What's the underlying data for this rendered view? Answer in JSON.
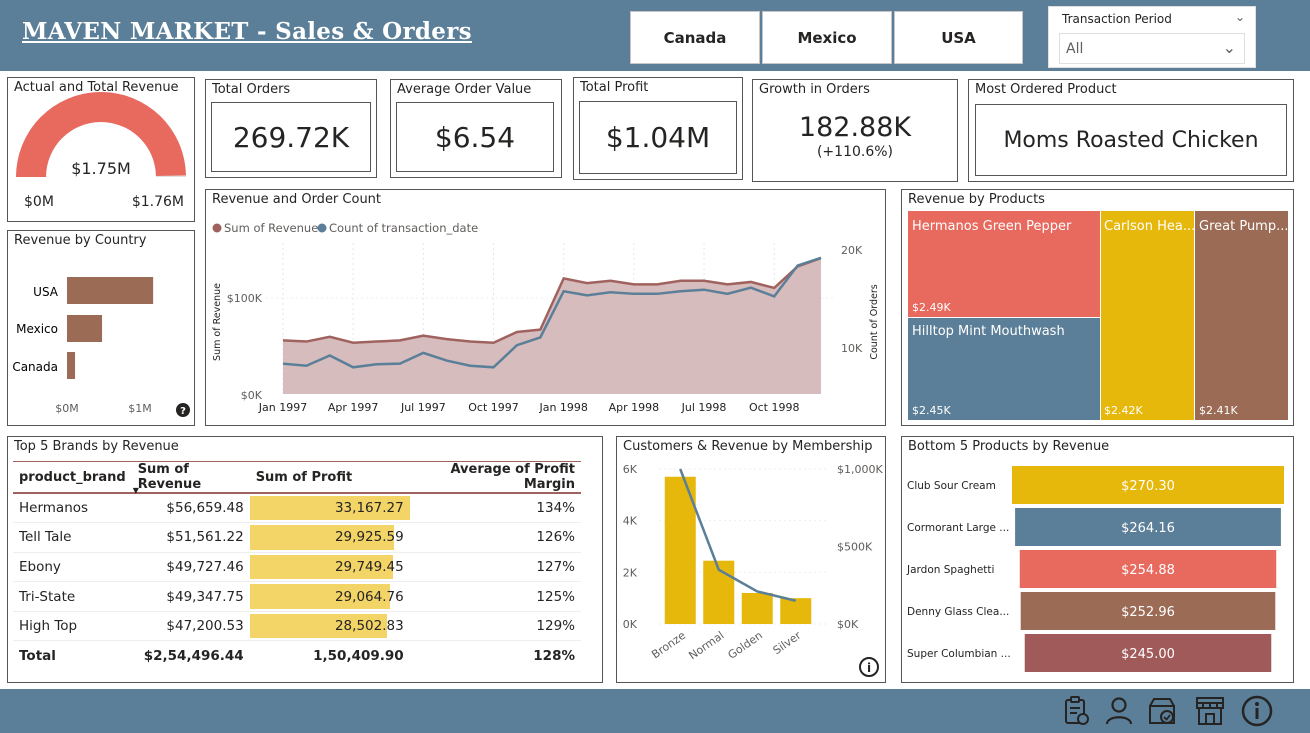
{
  "header": {
    "title": "MAVEN MARKET - Sales & Orders",
    "countries": [
      "Canada",
      "Mexico",
      "USA"
    ],
    "slicer": {
      "title": "Transaction Period",
      "value": "All"
    }
  },
  "gauge": {
    "title": "Actual and Total Revenue",
    "value_label": "$1.75M",
    "min_label": "$0M",
    "max_label": "$1.76M",
    "fill_fraction": 0.994,
    "color": "#e8695e"
  },
  "kpis": {
    "total_orders": {
      "title": "Total Orders",
      "value": "269.72K"
    },
    "avg_order_value": {
      "title": "Average Order Value",
      "value": "$6.54"
    },
    "total_profit": {
      "title": "Total Profit",
      "value": "$1.04M"
    },
    "growth": {
      "title": "Growth in Orders",
      "value": "182.88K",
      "sub": "(+110.6%)"
    },
    "most_ordered": {
      "title": "Most Ordered Product",
      "value": "Moms Roasted Chicken"
    }
  },
  "revenue_by_country": {
    "title": "Revenue by Country",
    "categories": [
      "USA",
      "Mexico",
      "Canada"
    ],
    "values": [
      1.18,
      0.48,
      0.11
    ],
    "xmax": 1.4,
    "x_ticks": [
      "$0M",
      "$1M"
    ],
    "color": "#9b6b55"
  },
  "revenue_order_count": {
    "title": "Revenue and Order Count",
    "legend": [
      "Sum of Revenue",
      "Count of transaction_date"
    ],
    "colors": {
      "revenue_line": "#a0625e",
      "revenue_fill": "#d6bcbc",
      "orders": "#5b7f98"
    },
    "x_labels": [
      "Jan 1997",
      "Apr 1997",
      "Jul 1997",
      "Oct 1997",
      "Jan 1998",
      "Apr 1998",
      "Jul 1998",
      "Oct 1998"
    ],
    "y_left_ticks": [
      "$0K",
      "$100K"
    ],
    "y_right_ticks": [
      "10K",
      "20K"
    ],
    "y_left_label": "Sum of Revenue",
    "y_right_label": "Count of Orders",
    "revenue": [
      45,
      44,
      48,
      43,
      44,
      45,
      49,
      46,
      44,
      43,
      52,
      54,
      97,
      93,
      95,
      92,
      92,
      95,
      95,
      92,
      94,
      89,
      107,
      114
    ],
    "orders": [
      5.9,
      5.5,
      7.5,
      5.2,
      5.8,
      5.9,
      8.0,
      6.5,
      5.5,
      5.2,
      9.5,
      11.0,
      20.0,
      19.2,
      19.8,
      19.5,
      19.5,
      20.0,
      20.3,
      19.5,
      20.7,
      19.0,
      25.0,
      26.5
    ],
    "revenue_max": 125,
    "orders_max": 29
  },
  "revenue_by_products": {
    "title": "Revenue by Products",
    "items": [
      {
        "name": "Hermanos Green Pepper",
        "value": "$2.49K",
        "color": "#e8695e"
      },
      {
        "name": "Hilltop Mint Mouthwash",
        "value": "$2.45K",
        "color": "#5b7f98"
      },
      {
        "name": "Carlson Hea...",
        "value": "$2.42K",
        "color": "#e6b80b"
      },
      {
        "name": "Great Pump...",
        "value": "$2.41K",
        "color": "#9b6b55"
      }
    ]
  },
  "top_brands": {
    "title": "Top 5 Brands by Revenue",
    "headers": [
      "product_brand",
      "Sum of Revenue",
      "Sum of Profit",
      "Average of Profit Margin"
    ],
    "rows": [
      {
        "brand": "Hermanos",
        "revenue": "$56,659.48",
        "profit": "33,167.27",
        "profit_value": 33167.27,
        "margin": "134%"
      },
      {
        "brand": "Tell Tale",
        "revenue": "$51,561.22",
        "profit": "29,925.59",
        "profit_value": 29925.59,
        "margin": "126%"
      },
      {
        "brand": "Ebony",
        "revenue": "$49,727.46",
        "profit": "29,749.45",
        "profit_value": 29749.45,
        "margin": "127%"
      },
      {
        "brand": "Tri-State",
        "revenue": "$49,347.75",
        "profit": "29,064.76",
        "profit_value": 29064.76,
        "margin": "125%"
      },
      {
        "brand": "High Top",
        "revenue": "$47,200.53",
        "profit": "28,502.83",
        "profit_value": 28502.83,
        "margin": "129%"
      }
    ],
    "total": {
      "label": "Total",
      "revenue": "$2,54,496.44",
      "profit": "1,50,409.90",
      "margin": "128%"
    },
    "bar_color": "#f2d467"
  },
  "membership": {
    "title": "Customers & Revenue by Membership",
    "categories": [
      "Bronze",
      "Normal",
      "Golden",
      "Silver"
    ],
    "customers": [
      5700,
      2450,
      1200,
      1000
    ],
    "revenue": [
      1000000,
      350000,
      210000,
      150000
    ],
    "customers_max": 6000,
    "revenue_max": 1000000,
    "y_left_ticks": [
      "0K",
      "2K",
      "4K",
      "6K"
    ],
    "y_right_ticks": [
      "$0K",
      "$500K",
      "$1,000K"
    ],
    "bar_color": "#e6b80b",
    "line_color": "#5b7f98"
  },
  "bottom_products": {
    "title": "Bottom 5 Products by Revenue",
    "items": [
      {
        "name": "Club Sour Cream",
        "label": "$270.30",
        "value": 270.3,
        "color": "#e6b80b"
      },
      {
        "name": "Cormorant Large ...",
        "label": "$264.16",
        "value": 264.16,
        "color": "#5b7f98"
      },
      {
        "name": "Jardon Spaghetti",
        "label": "$254.88",
        "value": 254.88,
        "color": "#e8695e"
      },
      {
        "name": "Denny Glass Clea...",
        "label": "$252.96",
        "value": 252.96,
        "color": "#9b6b55"
      },
      {
        "name": "Super Columbian ...",
        "label": "$245.00",
        "value": 245.0,
        "color": "#a05a5a"
      }
    ]
  },
  "footer_icons": [
    "clipboard-icon",
    "user-icon",
    "shop-check-icon",
    "store-icon",
    "info-icon"
  ]
}
